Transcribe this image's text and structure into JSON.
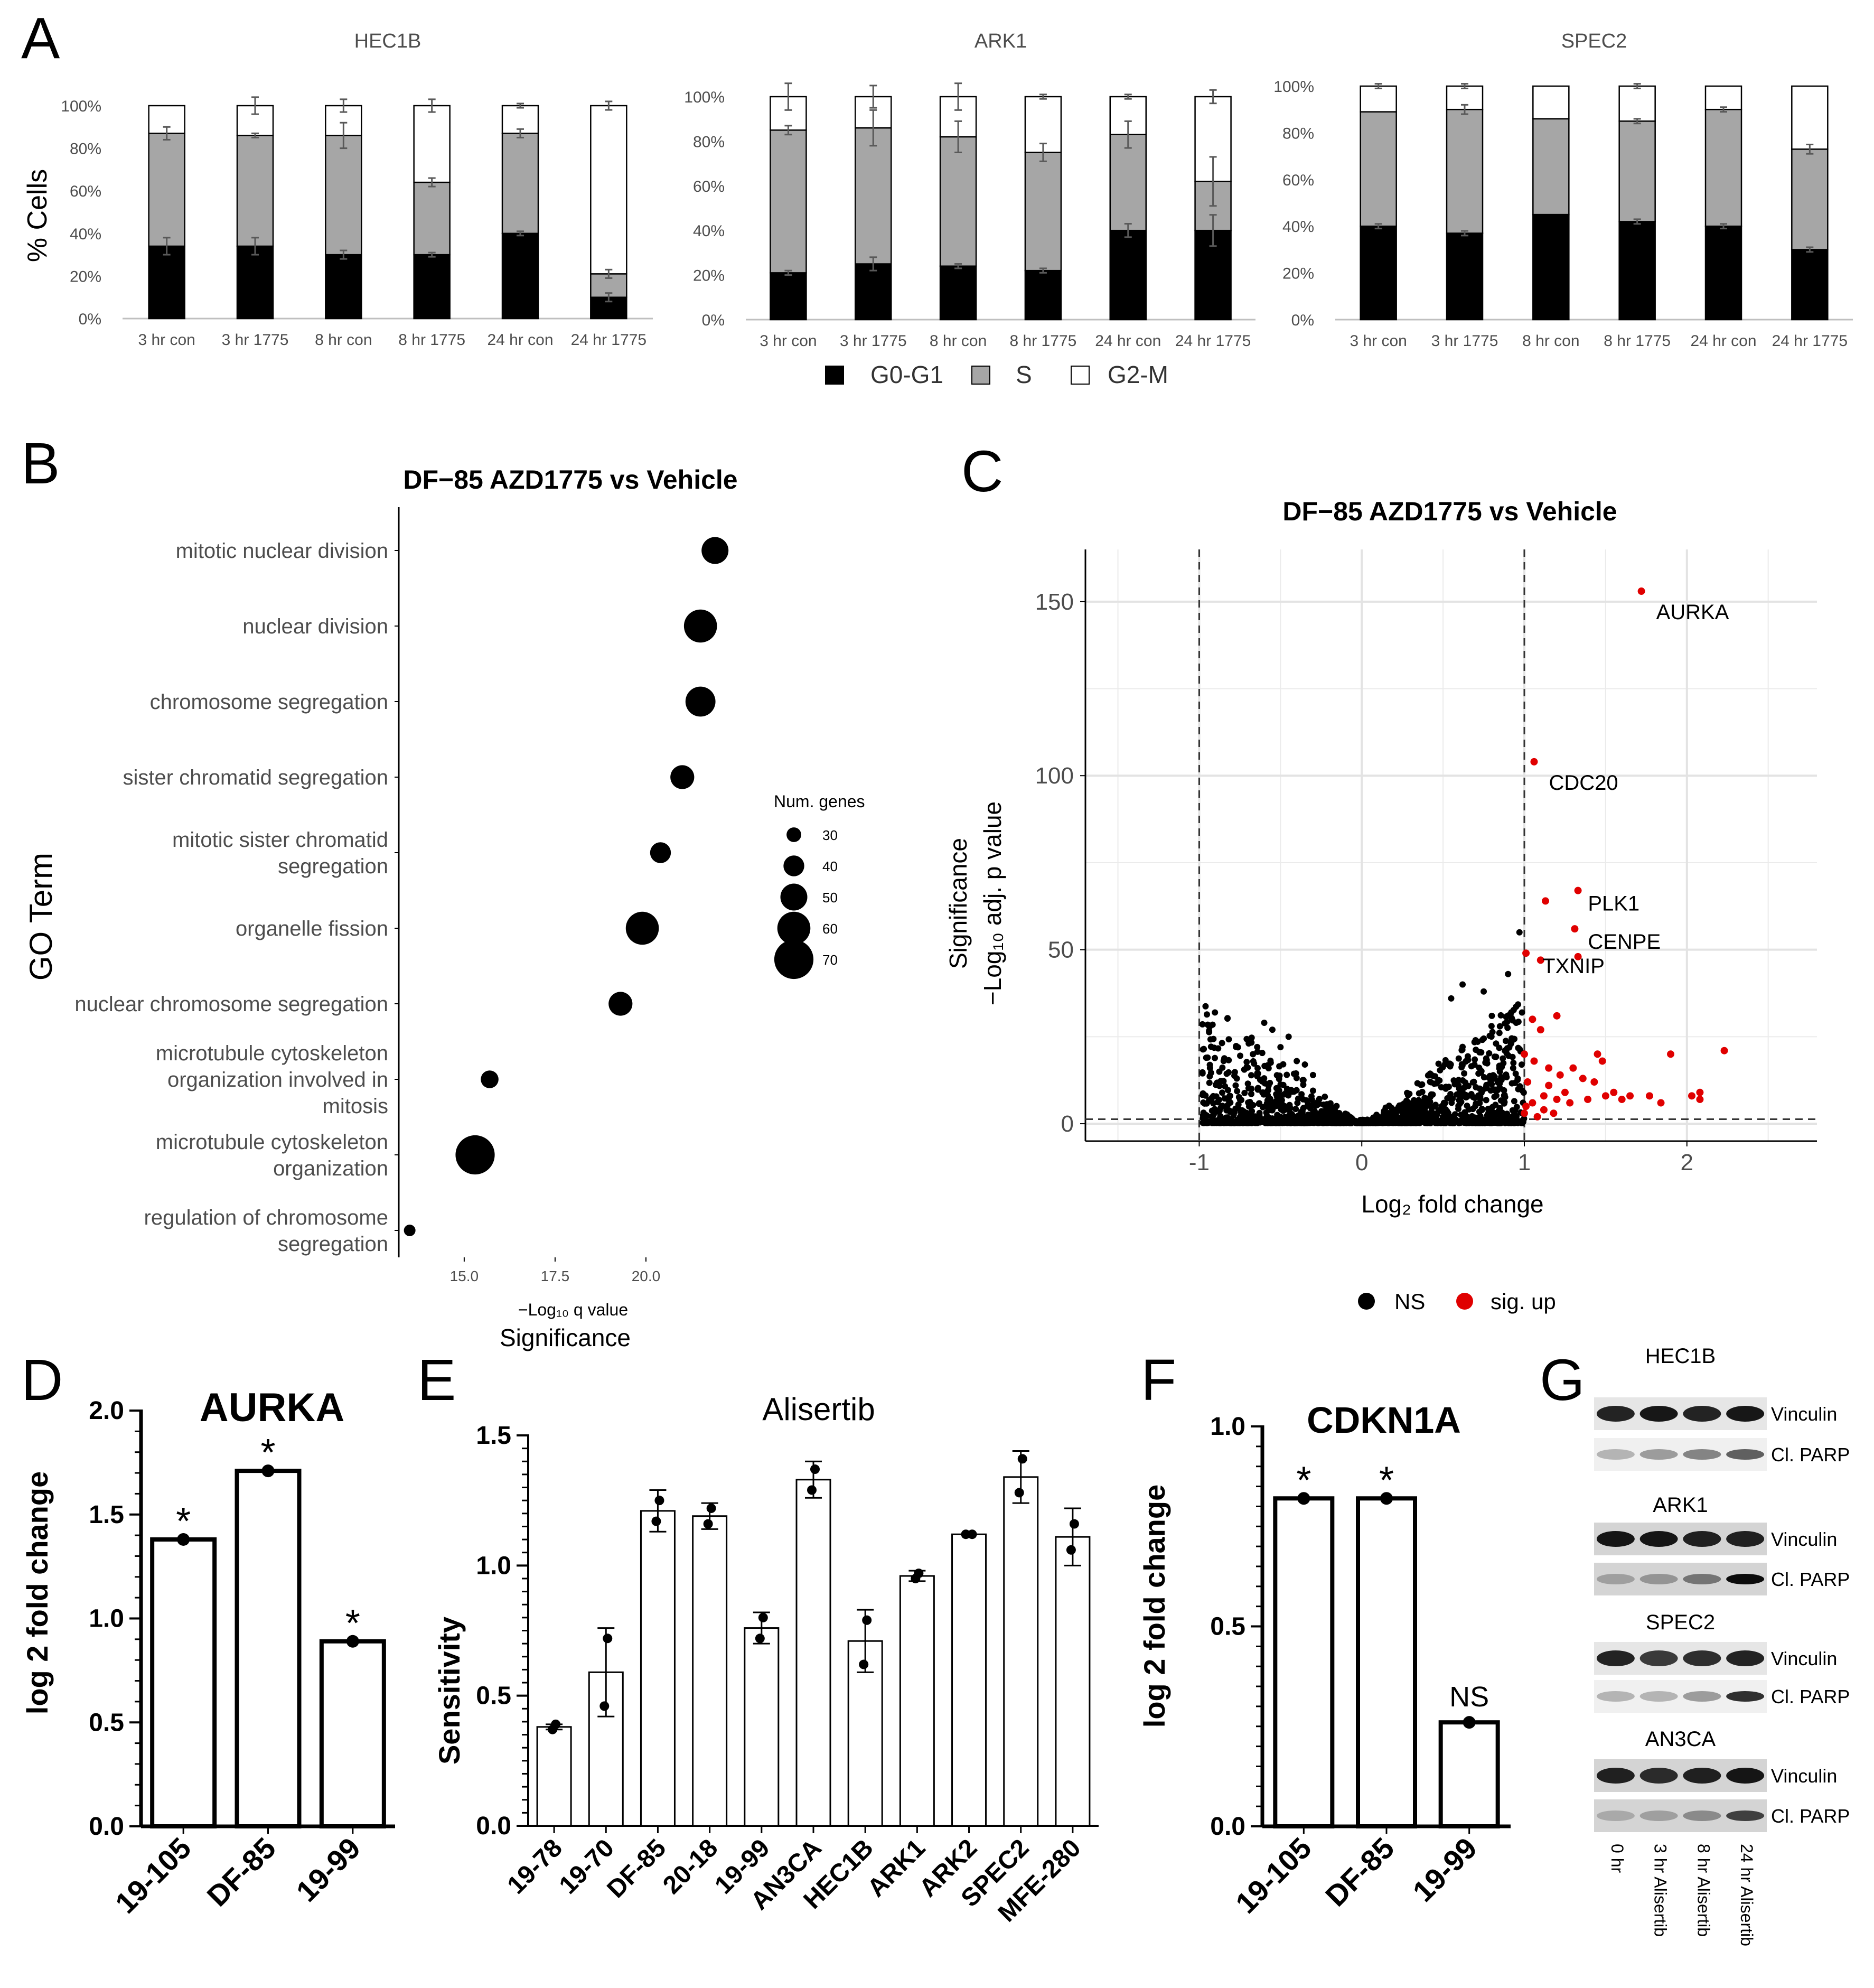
{
  "panel_labels": {
    "A": "A",
    "B": "B",
    "C": "C",
    "D": "D",
    "E": "E",
    "F": "F",
    "G": "G"
  },
  "chart_data": [
    {
      "id": "A1",
      "type": "bar",
      "stacked": true,
      "title": "HEC1B",
      "ylabel": "% Cells",
      "ylim": [
        0,
        100
      ],
      "yticks": [
        "0%",
        "20%",
        "40%",
        "60%",
        "80%",
        "100%"
      ],
      "categories": [
        "3 hr con",
        "3 hr 1775",
        "8 hr con",
        "8 hr 1775",
        "24 hr con",
        "24 hr 1775"
      ],
      "series": [
        {
          "name": "G0-G1",
          "values": [
            34,
            34,
            30,
            30,
            40,
            10
          ],
          "err": [
            4,
            4,
            2,
            1,
            1,
            2
          ]
        },
        {
          "name": "S",
          "values": [
            53,
            52,
            56,
            34,
            47,
            11
          ],
          "err": [
            3,
            1,
            6,
            2,
            2,
            2
          ]
        },
        {
          "name": "G2-M",
          "values": [
            13,
            14,
            14,
            36,
            13,
            79
          ],
          "err": [
            0,
            4,
            3,
            3,
            1,
            2
          ]
        }
      ]
    },
    {
      "id": "A2",
      "type": "bar",
      "stacked": true,
      "title": "ARK1",
      "ylim": [
        0,
        100
      ],
      "yticks": [
        "0%",
        "20%",
        "40%",
        "60%",
        "80%",
        "100%"
      ],
      "categories": [
        "3 hr con",
        "3 hr 1775",
        "8 hr con",
        "8 hr 1775",
        "24 hr con",
        "24 hr 1775"
      ],
      "series": [
        {
          "name": "G0-G1",
          "values": [
            21,
            25,
            24,
            22,
            40,
            40
          ],
          "err": [
            1,
            3,
            1,
            1,
            3,
            7
          ]
        },
        {
          "name": "S",
          "values": [
            64,
            61,
            58,
            53,
            43,
            22
          ],
          "err": [
            2,
            8,
            7,
            4,
            6,
            11
          ]
        },
        {
          "name": "G2-M",
          "values": [
            15,
            14,
            18,
            25,
            17,
            38
          ],
          "err": [
            6,
            5,
            6,
            1,
            1,
            3
          ]
        }
      ]
    },
    {
      "id": "A3",
      "type": "bar",
      "stacked": true,
      "title": "SPEC2",
      "ylim": [
        0,
        100
      ],
      "yticks": [
        "0%",
        "20%",
        "40%",
        "60%",
        "80%",
        "100%"
      ],
      "categories": [
        "3 hr con",
        "3 hr 1775",
        "8 hr con",
        "8 hr 1775",
        "24 hr con",
        "24 hr 1775"
      ],
      "series": [
        {
          "name": "G0-G1",
          "values": [
            40,
            37,
            45,
            42,
            40,
            30
          ],
          "err": [
            1,
            1,
            0,
            1,
            1,
            1
          ]
        },
        {
          "name": "S",
          "values": [
            49,
            53,
            41,
            43,
            50,
            43
          ],
          "err": [
            0,
            2,
            0,
            1,
            1,
            2
          ]
        },
        {
          "name": "G2-M",
          "values": [
            11,
            10,
            14,
            15,
            10,
            27
          ],
          "err": [
            1,
            1,
            0,
            1,
            0,
            0
          ]
        }
      ]
    },
    {
      "id": "B",
      "type": "scatter",
      "title": "DF−85 AZD1775 vs Vehicle",
      "ylabel": "GO Term",
      "xlabel_line1": "−Log₁₀ q value",
      "xlabel_line2": "Significance",
      "xlim": [
        13.2,
        22.5
      ],
      "xticks": [
        "15.0",
        "17.5",
        "20.0"
      ],
      "size_legend_title": "Num. genes",
      "size_legend": [
        30,
        40,
        50,
        60,
        70
      ],
      "points": [
        {
          "term": [
            "mitotic nuclear division"
          ],
          "x": 21.9,
          "genes": 50
        },
        {
          "term": [
            "nuclear division"
          ],
          "x": 21.5,
          "genes": 60
        },
        {
          "term": [
            "chromosome segregation"
          ],
          "x": 21.5,
          "genes": 55
        },
        {
          "term": [
            "sister chromatid segregation"
          ],
          "x": 21.0,
          "genes": 45
        },
        {
          "term": [
            "mitotic sister chromatid",
            "segregation"
          ],
          "x": 20.4,
          "genes": 40
        },
        {
          "term": [
            "organelle fission"
          ],
          "x": 19.9,
          "genes": 60
        },
        {
          "term": [
            "nuclear chromosome segregation"
          ],
          "x": 19.3,
          "genes": 45
        },
        {
          "term": [
            "microtubule cytoskeleton",
            "organization involved in",
            "mitosis"
          ],
          "x": 15.7,
          "genes": 35
        },
        {
          "term": [
            "microtubule cytoskeleton",
            "organization"
          ],
          "x": 15.3,
          "genes": 70
        },
        {
          "term": [
            "regulation of chromosome",
            "segregation"
          ],
          "x": 13.5,
          "genes": 25
        }
      ]
    },
    {
      "id": "C",
      "type": "scatter",
      "title": "DF−85 AZD1775 vs Vehicle",
      "xlabel": "Log₂ fold change",
      "ylabel_line1": "Significance",
      "ylabel_line2": "−Log₁₀ adj. p value",
      "xlim": [
        -1.7,
        2.8
      ],
      "ylim": [
        -5,
        165
      ],
      "xticks": [
        "-1",
        "0",
        "1",
        "2"
      ],
      "yticks": [
        "0",
        "50",
        "100",
        "150"
      ],
      "legend": [
        {
          "name": "NS",
          "color": "#000000"
        },
        {
          "name": "sig. up",
          "color": "#e00000"
        }
      ],
      "labeled_points": [
        {
          "label": "AURKA",
          "x": 1.72,
          "y": 153
        },
        {
          "label": "CDC20",
          "x": 1.06,
          "y": 104
        },
        {
          "label": "PLK1",
          "x": 1.3,
          "y": 67
        },
        {
          "label": "CENPE",
          "x": 1.3,
          "y": 56
        },
        {
          "label": "TXNIP",
          "x": 1.02,
          "y": 49
        }
      ]
    },
    {
      "id": "D",
      "type": "bar",
      "title": "AURKA",
      "ylabel": "log 2 fold change",
      "ylim": [
        0,
        2.0
      ],
      "yticks": [
        "0.0",
        "0.5",
        "1.0",
        "1.5",
        "2.0"
      ],
      "categories": [
        "19-105",
        "DF-85",
        "19-99"
      ],
      "values": [
        1.38,
        1.71,
        0.89
      ],
      "annotations": [
        "*",
        "*",
        "*"
      ]
    },
    {
      "id": "E",
      "type": "bar",
      "title": "Alisertib",
      "ylabel": "Sensitivity",
      "ylim": [
        0,
        1.5
      ],
      "yticks": [
        "0.0",
        "0.5",
        "1.0",
        "1.5"
      ],
      "categories": [
        "19-78",
        "19-70",
        "DF-85",
        "20-18",
        "19-99",
        "AN3CA",
        "HEC1B",
        "ARK1",
        "ARK2",
        "SPEC2",
        "MFE-280"
      ],
      "values": [
        0.38,
        0.59,
        1.21,
        1.19,
        0.76,
        1.33,
        0.71,
        0.96,
        1.12,
        1.34,
        1.11
      ],
      "err": [
        0.01,
        0.17,
        0.08,
        0.05,
        0.06,
        0.07,
        0.12,
        0.02,
        0.0,
        0.1,
        0.11
      ],
      "points": [
        [
          0.37,
          0.39
        ],
        [
          0.46,
          0.72
        ],
        [
          1.17,
          1.25
        ],
        [
          1.16,
          1.22
        ],
        [
          0.72,
          0.8
        ],
        [
          1.29,
          1.37
        ],
        [
          0.62,
          0.79
        ],
        [
          0.95,
          0.97
        ],
        [
          1.12,
          1.12
        ],
        [
          1.28,
          1.41
        ],
        [
          1.06,
          1.16
        ]
      ]
    },
    {
      "id": "F",
      "type": "bar",
      "title": "CDKN1A",
      "ylabel": "log 2 fold change",
      "ylim": [
        0,
        1.0
      ],
      "yticks": [
        "0.0",
        "0.5",
        "1.0"
      ],
      "categories": [
        "19-105",
        "DF-85",
        "19-99"
      ],
      "values": [
        0.82,
        0.82,
        0.26
      ],
      "annotations": [
        "*",
        "*",
        "NS"
      ]
    }
  ],
  "legend_A": [
    {
      "name": "G0-G1",
      "color": "#000000"
    },
    {
      "name": "S",
      "color": "#a6a6a6"
    },
    {
      "name": "G2-M",
      "color": "#ffffff"
    }
  ],
  "colors": {
    "g0g1": "#000000",
    "s": "#a6a6a6",
    "g2m": "#ffffff",
    "sig_up": "#e00000",
    "ns": "#000000"
  },
  "panel_G": {
    "blots": [
      {
        "cell_line": "HEC1B",
        "rows": [
          "Vinculin",
          "Cl. PARP"
        ]
      },
      {
        "cell_line": "ARK1",
        "rows": [
          "Vinculin",
          "Cl. PARP"
        ]
      },
      {
        "cell_line": "SPEC2",
        "rows": [
          "Vinculin",
          "Cl. PARP"
        ]
      },
      {
        "cell_line": "AN3CA",
        "rows": [
          "Vinculin",
          "Cl. PARP"
        ]
      }
    ],
    "lanes": [
      "0 hr",
      "3 hr Alisertib",
      "8 hr Alisertib",
      "24 hr Alisertib"
    ]
  }
}
